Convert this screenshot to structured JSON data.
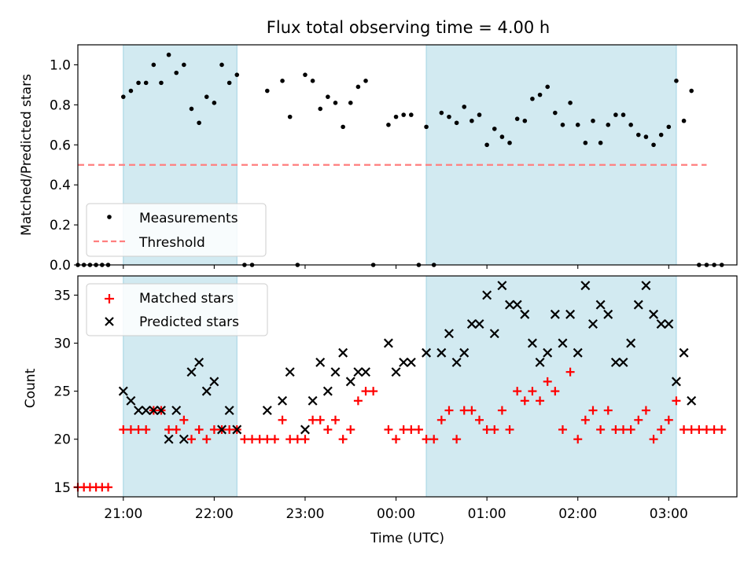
{
  "title": "Flux total observing time = 4.00 h",
  "colors": {
    "band": "#add8e6",
    "measure": "#000000",
    "threshold": "#ff7f7f",
    "matched": "#ff0000",
    "predicted": "#000000"
  },
  "chart_data": [
    {
      "type": "scatter",
      "ylabel": "Matched/Predicted stars",
      "ylim": [
        0,
        1.1
      ],
      "yticks": [
        "0.0",
        "0.2",
        "0.4",
        "0.6",
        "0.8",
        "1.0"
      ],
      "xlim": [
        "20:30",
        "03:45"
      ],
      "shaded_intervals": [
        [
          "21:00",
          "22:15"
        ],
        [
          "00:20",
          "03:05"
        ]
      ],
      "legend": [
        "Measurements",
        "Threshold"
      ],
      "threshold": 0.5,
      "threshold_range": [
        "20:30",
        "03:25"
      ],
      "series": [
        {
          "name": "Measurements",
          "points": [
            [
              "20:30",
              0.0
            ],
            [
              "20:34",
              0.0
            ],
            [
              "20:38",
              0.0
            ],
            [
              "20:42",
              0.0
            ],
            [
              "20:46",
              0.0
            ],
            [
              "20:50",
              0.0
            ],
            [
              "21:00",
              0.84
            ],
            [
              "21:05",
              0.87
            ],
            [
              "21:10",
              0.91
            ],
            [
              "21:15",
              0.91
            ],
            [
              "21:20",
              1.0
            ],
            [
              "21:25",
              0.91
            ],
            [
              "21:30",
              1.05
            ],
            [
              "21:35",
              0.96
            ],
            [
              "21:40",
              1.0
            ],
            [
              "21:45",
              0.78
            ],
            [
              "21:50",
              0.71
            ],
            [
              "21:55",
              0.84
            ],
            [
              "22:00",
              0.81
            ],
            [
              "22:05",
              1.0
            ],
            [
              "22:10",
              0.91
            ],
            [
              "22:15",
              0.95
            ],
            [
              "22:20",
              0.0
            ],
            [
              "22:25",
              0.0
            ],
            [
              "22:35",
              0.87
            ],
            [
              "22:45",
              0.92
            ],
            [
              "22:50",
              0.74
            ],
            [
              "22:55",
              0.0
            ],
            [
              "23:00",
              0.95
            ],
            [
              "23:05",
              0.92
            ],
            [
              "23:10",
              0.78
            ],
            [
              "23:15",
              0.84
            ],
            [
              "23:20",
              0.81
            ],
            [
              "23:25",
              0.69
            ],
            [
              "23:30",
              0.81
            ],
            [
              "23:35",
              0.89
            ],
            [
              "23:40",
              0.92
            ],
            [
              "23:45",
              0.0
            ],
            [
              "23:55",
              0.7
            ],
            [
              "00:00",
              0.74
            ],
            [
              "00:05",
              0.75
            ],
            [
              "00:10",
              0.75
            ],
            [
              "00:15",
              0.0
            ],
            [
              "00:20",
              0.69
            ],
            [
              "00:25",
              0.0
            ],
            [
              "00:30",
              0.76
            ],
            [
              "00:35",
              0.74
            ],
            [
              "00:40",
              0.71
            ],
            [
              "00:45",
              0.79
            ],
            [
              "00:50",
              0.72
            ],
            [
              "00:55",
              0.75
            ],
            [
              "01:00",
              0.6
            ],
            [
              "01:05",
              0.68
            ],
            [
              "01:10",
              0.64
            ],
            [
              "01:15",
              0.61
            ],
            [
              "01:20",
              0.73
            ],
            [
              "01:25",
              0.72
            ],
            [
              "01:30",
              0.83
            ],
            [
              "01:35",
              0.85
            ],
            [
              "01:40",
              0.89
            ],
            [
              "01:45",
              0.76
            ],
            [
              "01:50",
              0.7
            ],
            [
              "01:55",
              0.81
            ],
            [
              "02:00",
              0.7
            ],
            [
              "02:05",
              0.61
            ],
            [
              "02:10",
              0.72
            ],
            [
              "02:15",
              0.61
            ],
            [
              "02:20",
              0.7
            ],
            [
              "02:25",
              0.75
            ],
            [
              "02:30",
              0.75
            ],
            [
              "02:35",
              0.7
            ],
            [
              "02:40",
              0.65
            ],
            [
              "02:45",
              0.64
            ],
            [
              "02:50",
              0.6
            ],
            [
              "02:55",
              0.65
            ],
            [
              "03:00",
              0.69
            ],
            [
              "03:05",
              0.92
            ],
            [
              "03:10",
              0.72
            ],
            [
              "03:15",
              0.87
            ],
            [
              "03:20",
              0.0
            ],
            [
              "03:25",
              0.0
            ],
            [
              "03:30",
              0.0
            ],
            [
              "03:35",
              0.0
            ]
          ]
        }
      ]
    },
    {
      "type": "scatter",
      "ylabel": "Count",
      "xlabel": "Time (UTC)",
      "ylim": [
        14,
        37
      ],
      "yticks": [
        "15",
        "20",
        "25",
        "30",
        "35"
      ],
      "xticks": [
        "21:00",
        "22:00",
        "23:00",
        "00:00",
        "01:00",
        "02:00",
        "03:00"
      ],
      "xlim": [
        "20:30",
        "03:45"
      ],
      "shaded_intervals": [
        [
          "21:00",
          "22:15"
        ],
        [
          "00:20",
          "03:05"
        ]
      ],
      "legend": [
        "Matched stars",
        "Predicted stars"
      ],
      "series": [
        {
          "name": "Matched stars",
          "points": [
            [
              "20:30",
              15
            ],
            [
              "20:34",
              15
            ],
            [
              "20:38",
              15
            ],
            [
              "20:42",
              15
            ],
            [
              "20:46",
              15
            ],
            [
              "20:50",
              15
            ],
            [
              "21:00",
              21
            ],
            [
              "21:05",
              21
            ],
            [
              "21:10",
              21
            ],
            [
              "21:15",
              21
            ],
            [
              "21:20",
              23
            ],
            [
              "21:25",
              23
            ],
            [
              "21:30",
              21
            ],
            [
              "21:35",
              21
            ],
            [
              "21:40",
              22
            ],
            [
              "21:45",
              20
            ],
            [
              "21:50",
              21
            ],
            [
              "21:55",
              20
            ],
            [
              "22:00",
              21
            ],
            [
              "22:05",
              21
            ],
            [
              "22:10",
              21
            ],
            [
              "22:15",
              21
            ],
            [
              "22:20",
              20
            ],
            [
              "22:25",
              20
            ],
            [
              "22:30",
              20
            ],
            [
              "22:35",
              20
            ],
            [
              "22:40",
              20
            ],
            [
              "22:45",
              22
            ],
            [
              "22:50",
              20
            ],
            [
              "22:55",
              20
            ],
            [
              "23:00",
              20
            ],
            [
              "23:05",
              22
            ],
            [
              "23:10",
              22
            ],
            [
              "23:15",
              21
            ],
            [
              "23:20",
              22
            ],
            [
              "23:25",
              20
            ],
            [
              "23:30",
              21
            ],
            [
              "23:35",
              24
            ],
            [
              "23:40",
              25
            ],
            [
              "23:45",
              25
            ],
            [
              "23:55",
              21
            ],
            [
              "00:00",
              20
            ],
            [
              "00:05",
              21
            ],
            [
              "00:10",
              21
            ],
            [
              "00:15",
              21
            ],
            [
              "00:20",
              20
            ],
            [
              "00:25",
              20
            ],
            [
              "00:30",
              22
            ],
            [
              "00:35",
              23
            ],
            [
              "00:40",
              20
            ],
            [
              "00:45",
              23
            ],
            [
              "00:50",
              23
            ],
            [
              "00:55",
              22
            ],
            [
              "01:00",
              21
            ],
            [
              "01:05",
              21
            ],
            [
              "01:10",
              23
            ],
            [
              "01:15",
              21
            ],
            [
              "01:20",
              25
            ],
            [
              "01:25",
              24
            ],
            [
              "01:30",
              25
            ],
            [
              "01:35",
              24
            ],
            [
              "01:40",
              26
            ],
            [
              "01:45",
              25
            ],
            [
              "01:50",
              21
            ],
            [
              "01:55",
              27
            ],
            [
              "02:00",
              20
            ],
            [
              "02:05",
              22
            ],
            [
              "02:10",
              23
            ],
            [
              "02:15",
              21
            ],
            [
              "02:20",
              23
            ],
            [
              "02:25",
              21
            ],
            [
              "02:30",
              21
            ],
            [
              "02:35",
              21
            ],
            [
              "02:40",
              22
            ],
            [
              "02:45",
              23
            ],
            [
              "02:50",
              20
            ],
            [
              "02:55",
              21
            ],
            [
              "03:00",
              22
            ],
            [
              "03:05",
              24
            ],
            [
              "03:10",
              21
            ],
            [
              "03:15",
              21
            ],
            [
              "03:20",
              21
            ],
            [
              "03:25",
              21
            ],
            [
              "03:30",
              21
            ],
            [
              "03:35",
              21
            ]
          ]
        },
        {
          "name": "Predicted stars",
          "points": [
            [
              "21:00",
              25
            ],
            [
              "21:05",
              24
            ],
            [
              "21:10",
              23
            ],
            [
              "21:15",
              23
            ],
            [
              "21:20",
              23
            ],
            [
              "21:25",
              23
            ],
            [
              "21:30",
              20
            ],
            [
              "21:35",
              23
            ],
            [
              "21:40",
              20
            ],
            [
              "21:45",
              27
            ],
            [
              "21:50",
              28
            ],
            [
              "21:55",
              25
            ],
            [
              "22:00",
              26
            ],
            [
              "22:05",
              21
            ],
            [
              "22:10",
              23
            ],
            [
              "22:15",
              21
            ],
            [
              "22:35",
              23
            ],
            [
              "22:45",
              24
            ],
            [
              "22:50",
              27
            ],
            [
              "23:00",
              21
            ],
            [
              "23:05",
              24
            ],
            [
              "23:10",
              28
            ],
            [
              "23:15",
              25
            ],
            [
              "23:20",
              27
            ],
            [
              "23:25",
              29
            ],
            [
              "23:30",
              26
            ],
            [
              "23:35",
              27
            ],
            [
              "23:40",
              27
            ],
            [
              "23:55",
              30
            ],
            [
              "00:00",
              27
            ],
            [
              "00:05",
              28
            ],
            [
              "00:10",
              28
            ],
            [
              "00:20",
              29
            ],
            [
              "00:30",
              29
            ],
            [
              "00:35",
              31
            ],
            [
              "00:40",
              28
            ],
            [
              "00:45",
              29
            ],
            [
              "00:50",
              32
            ],
            [
              "00:55",
              32
            ],
            [
              "01:00",
              35
            ],
            [
              "01:05",
              31
            ],
            [
              "01:10",
              36
            ],
            [
              "01:15",
              34
            ],
            [
              "01:20",
              34
            ],
            [
              "01:25",
              33
            ],
            [
              "01:30",
              30
            ],
            [
              "01:35",
              28
            ],
            [
              "01:40",
              29
            ],
            [
              "01:45",
              33
            ],
            [
              "01:50",
              30
            ],
            [
              "01:55",
              33
            ],
            [
              "02:00",
              29
            ],
            [
              "02:05",
              36
            ],
            [
              "02:10",
              32
            ],
            [
              "02:15",
              34
            ],
            [
              "02:20",
              33
            ],
            [
              "02:25",
              28
            ],
            [
              "02:30",
              28
            ],
            [
              "02:35",
              30
            ],
            [
              "02:40",
              34
            ],
            [
              "02:45",
              36
            ],
            [
              "02:50",
              33
            ],
            [
              "02:55",
              32
            ],
            [
              "03:00",
              32
            ],
            [
              "03:05",
              26
            ],
            [
              "03:10",
              29
            ],
            [
              "03:15",
              24
            ]
          ]
        }
      ]
    }
  ]
}
